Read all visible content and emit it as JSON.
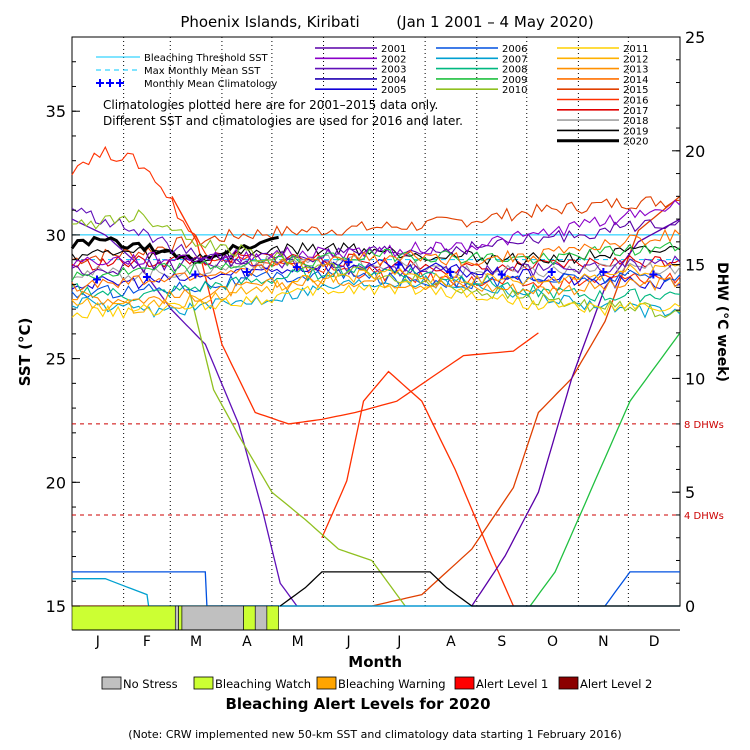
{
  "chart_data": {
    "type": "line",
    "title": "Phoenix Islands, Kiribati",
    "date_range": "(Jan 1 2001 – 4 May 2020)",
    "xlabel": "Month",
    "ylabel_left": "SST (°C)",
    "ylabel_right": "DHW (°C week)",
    "months": [
      "J",
      "F",
      "M",
      "A",
      "M",
      "J",
      "J",
      "A",
      "S",
      "O",
      "N",
      "D"
    ],
    "ylim_left": [
      15,
      38
    ],
    "yticks_left": [
      15,
      20,
      25,
      30,
      35
    ],
    "ylim_right": [
      0,
      25
    ],
    "yticks_right": [
      0,
      5,
      10,
      15,
      20,
      25
    ],
    "x_domain_days": [
      0,
      365
    ],
    "grid": "vertical dotted at month boundaries",
    "note_lines": [
      "Climatologies plotted here are for 2001–2015 data only.",
      "Different SST and climatologies are used for 2016 and later."
    ],
    "legend_left": [
      {
        "name": "Bleaching Threshold SST",
        "color": "#00c8ff",
        "style": "solid"
      },
      {
        "name": "Max Monthly Mean SST",
        "color": "#00c8ff",
        "style": "dashed"
      },
      {
        "name": "Monthly Mean Climatology",
        "color": "#0000ff",
        "style": "plus"
      }
    ],
    "legend_years": [
      {
        "name": "2001",
        "color": "#5a00a8"
      },
      {
        "name": "2002",
        "color": "#8a00c8"
      },
      {
        "name": "2003",
        "color": "#6010b8"
      },
      {
        "name": "2004",
        "color": "#2000b0"
      },
      {
        "name": "2005",
        "color": "#1000d8"
      },
      {
        "name": "2006",
        "color": "#0050e0"
      },
      {
        "name": "2007",
        "color": "#00a0d0"
      },
      {
        "name": "2008",
        "color": "#00b880"
      },
      {
        "name": "2009",
        "color": "#20c040"
      },
      {
        "name": "2010",
        "color": "#90c020"
      },
      {
        "name": "2011",
        "color": "#ffd000"
      },
      {
        "name": "2012",
        "color": "#ffb000"
      },
      {
        "name": "2013",
        "color": "#ff9000"
      },
      {
        "name": "2014",
        "color": "#ff7000"
      },
      {
        "name": "2015",
        "color": "#e04000"
      },
      {
        "name": "2016",
        "color": "#ff3000"
      },
      {
        "name": "2017",
        "color": "#e00000"
      },
      {
        "name": "2018",
        "color": "#a0a0a0"
      },
      {
        "name": "2019",
        "color": "#000000"
      },
      {
        "name": "2020",
        "color": "#000000",
        "bold": true
      }
    ],
    "bleaching_threshold_sst": 30.0,
    "max_monthly_mean_sst": 29.0,
    "monthly_mean_climatology": {
      "x_day": [
        15,
        45,
        74,
        105,
        135,
        166,
        196,
        227,
        258,
        288,
        319,
        349
      ],
      "values": [
        28.2,
        28.3,
        28.4,
        28.5,
        28.7,
        28.9,
        28.8,
        28.5,
        28.4,
        28.5,
        28.5,
        28.4
      ]
    },
    "dhw_reference_lines": [
      {
        "value": 8,
        "label": "8 DHWs",
        "color": "#cc0000"
      },
      {
        "value": 4,
        "label": "4 DHWs",
        "color": "#cc0000"
      }
    ],
    "sst_series": [
      {
        "year": "2015",
        "color": "#e04000",
        "x": [
          0,
          20,
          40,
          60,
          80,
          100,
          120,
          150,
          180,
          210,
          240,
          270,
          300,
          330,
          365
        ],
        "y": [
          29.0,
          29.2,
          29.3,
          29.6,
          29.8,
          30.0,
          30.1,
          30.2,
          30.3,
          30.4,
          30.6,
          30.9,
          31.1,
          31.3,
          31.4
        ]
      },
      {
        "year": "2016",
        "color": "#ff3000",
        "x": [
          0,
          10,
          20,
          30,
          40,
          50,
          60,
          70,
          80,
          100,
          130,
          160,
          200,
          240,
          280,
          320,
          365
        ],
        "y": [
          32.7,
          33.1,
          33.3,
          33.2,
          32.9,
          32.3,
          31.3,
          30.2,
          29.3,
          29.0,
          28.7,
          28.6,
          28.3,
          28.1,
          28.0,
          28.2,
          28.3
        ]
      },
      {
        "year": "2017",
        "color": "#e00000",
        "x": [
          0,
          40,
          80,
          120,
          160,
          200,
          240,
          280,
          320,
          365
        ],
        "y": [
          28.8,
          28.9,
          29.0,
          29.1,
          29.0,
          28.8,
          28.6,
          28.7,
          28.9,
          29.0
        ]
      },
      {
        "year": "2018",
        "color": "#a0a0a0",
        "x": [
          0,
          40,
          80,
          120,
          160,
          200,
          240,
          280,
          320,
          365
        ],
        "y": [
          28.5,
          28.4,
          28.6,
          28.9,
          29.0,
          28.7,
          28.5,
          28.5,
          28.6,
          28.7
        ]
      },
      {
        "year": "2019",
        "color": "#000000",
        "x": [
          0,
          40,
          80,
          120,
          160,
          200,
          240,
          280,
          320,
          365
        ],
        "y": [
          29.2,
          29.3,
          29.1,
          29.4,
          29.5,
          29.3,
          29.1,
          29.0,
          29.2,
          29.4
        ]
      },
      {
        "year": "2020",
        "color": "#000000",
        "x": [
          0,
          10,
          20,
          30,
          40,
          50,
          60,
          70,
          80,
          90,
          100,
          110,
          124
        ],
        "y": [
          29.6,
          29.7,
          29.8,
          29.6,
          29.5,
          29.4,
          29.2,
          29.0,
          29.1,
          29.3,
          29.5,
          29.6,
          29.9
        ],
        "bold": true
      },
      {
        "year": "2001",
        "color": "#5a00a8",
        "x": [
          0,
          40,
          80,
          120,
          160,
          200,
          240,
          280,
          320,
          365
        ],
        "y": [
          28.6,
          28.7,
          28.9,
          29.1,
          29.2,
          29.3,
          29.5,
          29.8,
          30.2,
          30.6
        ]
      },
      {
        "year": "2002",
        "color": "#8a00c8",
        "x": [
          0,
          40,
          80,
          120,
          160,
          200,
          240,
          280,
          320,
          365
        ],
        "y": [
          28.9,
          29.0,
          29.1,
          29.2,
          29.3,
          29.4,
          29.6,
          30.0,
          30.6,
          31.2
        ]
      },
      {
        "year": "2003",
        "color": "#6010b8",
        "x": [
          0,
          20,
          40,
          60,
          80,
          120,
          160,
          200,
          240,
          280,
          320,
          365
        ],
        "y": [
          31.0,
          30.6,
          30.1,
          29.5,
          29.0,
          28.8,
          28.7,
          28.6,
          28.5,
          28.6,
          28.7,
          28.9
        ]
      },
      {
        "year": "2005",
        "color": "#1000d8",
        "x": [
          0,
          40,
          80,
          120,
          160,
          200,
          240,
          280,
          320,
          365
        ],
        "y": [
          28.0,
          28.1,
          28.3,
          28.6,
          28.8,
          28.7,
          28.5,
          28.3,
          28.1,
          28.0
        ]
      },
      {
        "year": "2006",
        "color": "#0050e0",
        "x": [
          0,
          40,
          80,
          120,
          160,
          200,
          240,
          280,
          320,
          365
        ],
        "y": [
          27.6,
          27.8,
          28.0,
          28.3,
          28.4,
          28.2,
          28.1,
          28.2,
          28.3,
          28.4
        ]
      },
      {
        "year": "2007",
        "color": "#00a0d0",
        "x": [
          0,
          40,
          80,
          120,
          160,
          200,
          240,
          280,
          320,
          365
        ],
        "y": [
          27.3,
          26.9,
          27.1,
          27.5,
          28.0,
          28.2,
          28.0,
          27.6,
          27.1,
          26.8
        ]
      },
      {
        "year": "2008",
        "color": "#00b880",
        "x": [
          0,
          40,
          80,
          120,
          160,
          200,
          240,
          280,
          320,
          365
        ],
        "y": [
          27.8,
          27.5,
          27.9,
          28.2,
          28.6,
          28.5,
          28.2,
          27.7,
          27.5,
          27.6
        ]
      },
      {
        "year": "2009",
        "color": "#20c040",
        "x": [
          0,
          40,
          80,
          120,
          160,
          200,
          240,
          280,
          320,
          365
        ],
        "y": [
          28.3,
          28.5,
          28.7,
          28.9,
          29.1,
          29.2,
          29.1,
          29.0,
          29.3,
          29.5
        ]
      },
      {
        "year": "2010",
        "color": "#90c020",
        "x": [
          0,
          20,
          40,
          60,
          80,
          120,
          160,
          200,
          240,
          280,
          320,
          365
        ],
        "y": [
          30.3,
          30.6,
          30.8,
          30.3,
          29.6,
          29.1,
          28.6,
          28.2,
          27.8,
          27.4,
          27.1,
          26.9
        ]
      },
      {
        "year": "2011",
        "color": "#ffd000",
        "x": [
          0,
          40,
          80,
          120,
          160,
          200,
          240,
          280,
          320,
          365
        ],
        "y": [
          26.8,
          26.9,
          27.2,
          27.5,
          27.8,
          27.9,
          27.6,
          27.2,
          27.0,
          27.1
        ]
      },
      {
        "year": "2012",
        "color": "#ffb000",
        "x": [
          0,
          40,
          80,
          120,
          160,
          200,
          240,
          280,
          320,
          365
        ],
        "y": [
          27.2,
          27.1,
          27.4,
          27.9,
          28.3,
          28.4,
          28.2,
          28.1,
          28.4,
          28.8
        ]
      },
      {
        "year": "2013",
        "color": "#ff9000",
        "x": [
          0,
          40,
          80,
          120,
          160,
          200,
          240,
          280,
          320,
          365
        ],
        "y": [
          27.5,
          27.4,
          27.6,
          28.0,
          28.2,
          28.1,
          27.9,
          27.8,
          27.9,
          28.1
        ]
      },
      {
        "year": "2014",
        "color": "#ff7000",
        "x": [
          0,
          40,
          80,
          120,
          160,
          200,
          240,
          280,
          320,
          365
        ],
        "y": [
          27.9,
          28.1,
          28.4,
          28.7,
          29.0,
          29.1,
          29.0,
          29.2,
          29.6,
          30.0
        ]
      }
    ],
    "dhw_series": [
      {
        "year": "2015",
        "color": "#e04000",
        "x": [
          0,
          90,
          120,
          150,
          180,
          210,
          240,
          265,
          280,
          300,
          320,
          340,
          365
        ],
        "y": [
          0,
          0,
          0,
          0,
          0,
          0.5,
          2.5,
          5.2,
          8.5,
          10.0,
          12.5,
          16.5,
          18.0
        ]
      },
      {
        "year": "2016",
        "color": "#ff3000",
        "x": [
          60,
          75,
          90,
          110,
          130,
          150,
          170,
          195,
          215,
          235,
          265,
          280
        ],
        "y": [
          18.0,
          16.0,
          11.5,
          8.5,
          8.0,
          8.2,
          8.5,
          9.0,
          10.0,
          11.0,
          11.2,
          12.0
        ]
      },
      {
        "year": "2016b",
        "color": "#ff3000",
        "x": [
          150,
          165,
          175,
          190,
          210,
          230,
          250,
          265
        ],
        "y": [
          3.0,
          5.5,
          9.0,
          10.3,
          9.0,
          6.0,
          2.5,
          0
        ]
      },
      {
        "year": "2003",
        "color": "#6010b8",
        "x": [
          0,
          20,
          40,
          60,
          80,
          100,
          115,
          125,
          135
        ],
        "y": [
          17.0,
          16.3,
          15.0,
          13.0,
          11.5,
          8.0,
          4.0,
          1.0,
          0
        ]
      },
      {
        "year": "2010",
        "color": "#90c020",
        "x": [
          70,
          85,
          100,
          120,
          140,
          160,
          180,
          200
        ],
        "y": [
          14.0,
          9.5,
          7.5,
          5.0,
          3.8,
          2.5,
          2.0,
          0
        ]
      },
      {
        "year": "2001",
        "color": "#5a00a8",
        "x": [
          240,
          260,
          280,
          300,
          320,
          340,
          365
        ],
        "y": [
          0,
          2.2,
          5.0,
          10.0,
          14.0,
          16.0,
          17.0
        ]
      },
      {
        "year": "2009",
        "color": "#20c040",
        "x": [
          275,
          290,
          305,
          320,
          335,
          350,
          365
        ],
        "y": [
          0,
          1.5,
          4.0,
          6.5,
          9.0,
          10.5,
          12.0
        ]
      },
      {
        "year": "2006",
        "color": "#0050e0",
        "x": [
          0,
          80,
          81,
          100,
          101,
          175,
          176,
          320,
          335,
          365
        ],
        "y": [
          1.5,
          1.5,
          0,
          0,
          0,
          0,
          0,
          0,
          1.5,
          1.5
        ]
      },
      {
        "year": "2007",
        "color": "#00a0d0",
        "x": [
          0,
          20,
          45,
          46,
          365
        ],
        "y": [
          1.2,
          1.2,
          0.5,
          0,
          0
        ]
      },
      {
        "year": "2019",
        "color": "#000000",
        "x": [
          125,
          140,
          150,
          215,
          225,
          240,
          365
        ],
        "y": [
          0,
          0.8,
          1.5,
          1.5,
          0.8,
          0,
          0
        ]
      }
    ],
    "alert_2020": [
      {
        "level": "Bleaching Watch",
        "from": 0,
        "to": 62
      },
      {
        "level": "No Stress",
        "from": 62,
        "to": 64
      },
      {
        "level": "Bleaching Watch",
        "from": 64,
        "to": 66
      },
      {
        "level": "No Stress",
        "from": 66,
        "to": 103
      },
      {
        "level": "Bleaching Watch",
        "from": 103,
        "to": 110
      },
      {
        "level": "No Stress",
        "from": 110,
        "to": 117
      },
      {
        "level": "Bleaching Watch",
        "from": 117,
        "to": 124
      }
    ],
    "alert_legend": [
      {
        "label": "No Stress",
        "color": "#c0c0c0"
      },
      {
        "label": "Bleaching Watch",
        "color": "#ccff33"
      },
      {
        "label": "Bleaching Warning",
        "color": "#ffa500"
      },
      {
        "label": "Alert Level 1",
        "color": "#ff0000"
      },
      {
        "label": "Alert Level 2",
        "color": "#8b0000"
      }
    ],
    "alert_title": "Bleaching Alert Levels for 2020",
    "footnote": "(Note: CRW implemented new 50-km SST and climatology data starting 1 February 2016)"
  }
}
